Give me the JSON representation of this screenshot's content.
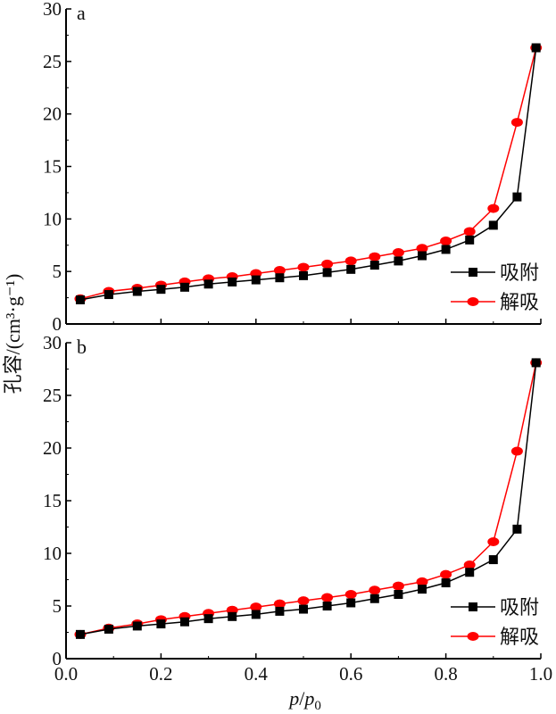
{
  "chart_data": {
    "type": "line",
    "shared_ylabel": "孔容/(cm³·g⁻¹)",
    "xlabel": {
      "italic_1": "p",
      "sep": "/",
      "italic_2": "p",
      "subscript": "0"
    },
    "xlim": [
      0.0,
      1.0
    ],
    "xticks": [
      "0.0",
      "0.2",
      "0.4",
      "0.6",
      "0.8",
      "1.0"
    ],
    "colors": {
      "吸附": "#000000",
      "解吸": "#ff0000"
    },
    "legend_placement": "lower-right",
    "panels": [
      {
        "label": "a",
        "ylim": [
          0,
          30
        ],
        "yticks": [
          "0",
          "5",
          "10",
          "15",
          "20",
          "25",
          "30"
        ],
        "series": [
          {
            "name": "吸附",
            "marker": "square",
            "x": [
              0.03,
              0.09,
              0.15,
              0.2,
              0.25,
              0.3,
              0.35,
              0.4,
              0.45,
              0.5,
              0.55,
              0.6,
              0.65,
              0.7,
              0.75,
              0.8,
              0.85,
              0.9,
              0.95,
              0.99
            ],
            "y": [
              2.3,
              2.8,
              3.1,
              3.3,
              3.5,
              3.8,
              4.0,
              4.2,
              4.4,
              4.6,
              4.9,
              5.2,
              5.6,
              6.0,
              6.5,
              7.1,
              8.0,
              9.4,
              12.1,
              26.3
            ]
          },
          {
            "name": "解吸",
            "marker": "circle",
            "x": [
              0.03,
              0.09,
              0.15,
              0.2,
              0.25,
              0.3,
              0.35,
              0.4,
              0.45,
              0.5,
              0.55,
              0.6,
              0.65,
              0.7,
              0.75,
              0.8,
              0.85,
              0.9,
              0.95,
              0.99
            ],
            "y": [
              2.4,
              3.1,
              3.4,
              3.7,
              4.0,
              4.3,
              4.5,
              4.8,
              5.1,
              5.4,
              5.7,
              6.0,
              6.4,
              6.8,
              7.2,
              7.9,
              8.8,
              11.0,
              19.2,
              26.3
            ]
          }
        ]
      },
      {
        "label": "b",
        "ylim": [
          0,
          30
        ],
        "yticks": [
          "0",
          "5",
          "10",
          "15",
          "20",
          "25",
          "30"
        ],
        "series": [
          {
            "name": "吸附",
            "marker": "square",
            "x": [
              0.03,
              0.09,
              0.15,
              0.2,
              0.25,
              0.3,
              0.35,
              0.4,
              0.45,
              0.5,
              0.55,
              0.6,
              0.65,
              0.7,
              0.75,
              0.8,
              0.85,
              0.9,
              0.95,
              0.99
            ],
            "y": [
              2.3,
              2.8,
              3.1,
              3.3,
              3.5,
              3.8,
              4.0,
              4.2,
              4.5,
              4.7,
              5.0,
              5.3,
              5.7,
              6.1,
              6.6,
              7.2,
              8.2,
              9.4,
              12.3,
              28.1
            ]
          },
          {
            "name": "解吸",
            "marker": "circle",
            "x": [
              0.03,
              0.09,
              0.15,
              0.2,
              0.25,
              0.3,
              0.35,
              0.4,
              0.45,
              0.5,
              0.55,
              0.6,
              0.65,
              0.7,
              0.75,
              0.8,
              0.85,
              0.9,
              0.95,
              0.99
            ],
            "y": [
              2.3,
              2.9,
              3.3,
              3.7,
              4.0,
              4.3,
              4.6,
              4.9,
              5.2,
              5.5,
              5.8,
              6.1,
              6.5,
              6.9,
              7.3,
              8.0,
              8.9,
              11.1,
              19.7,
              28.1
            ]
          }
        ]
      }
    ]
  }
}
